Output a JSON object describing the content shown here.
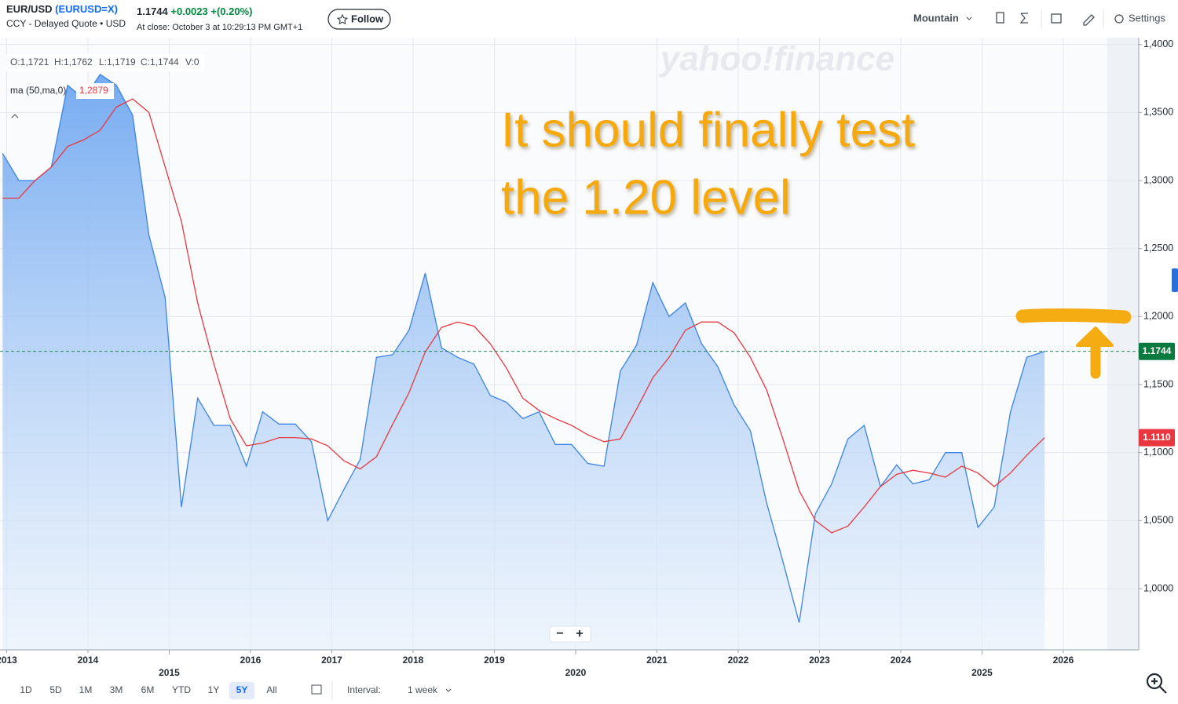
{
  "header": {
    "symbol": "EUR/USD",
    "ticker": "(EURUSD=X)",
    "subtitle": "CCY - Delayed Quote • USD",
    "price": "1.1744",
    "change": "+0.0023",
    "change_pct": "+(0.20%)",
    "close_time": "At close: October 3 at 10:29:13 PM GMT+1",
    "follow": "Follow",
    "chart_style": "Mountain",
    "settings": "Settings"
  },
  "ohlc": [
    "O:1,1721",
    "H:1,1762",
    "L:1,1719",
    "C:1,1744",
    "V:0"
  ],
  "legend_value": "1,2879",
  "watermark": "yahoo!finance",
  "annotation": [
    "It should finally test",
    "the 1.20 level"
  ],
  "zoom": [
    "−",
    "+"
  ],
  "ranges": [
    "1D",
    "5D",
    "1M",
    "3M",
    "6M",
    "YTD",
    "1Y",
    "5Y",
    "All"
  ],
  "selected_range": "5Y",
  "interval_label": "Interval:",
  "interval": "1 week",
  "chart_data": {
    "type": "area",
    "x": [
      2012.95,
      2013.15,
      2013.35,
      2013.55,
      2013.75,
      2013.95,
      2014.15,
      2014.35,
      2014.55,
      2014.75,
      2014.95,
      2015.15,
      2015.35,
      2015.55,
      2015.75,
      2015.95,
      2016.15,
      2016.35,
      2016.55,
      2016.75,
      2016.95,
      2017.15,
      2017.35,
      2017.55,
      2017.75,
      2017.95,
      2018.15,
      2018.35,
      2018.55,
      2018.75,
      2018.95,
      2019.15,
      2019.35,
      2019.55,
      2019.75,
      2019.95,
      2020.15,
      2020.35,
      2020.55,
      2020.75,
      2020.95,
      2021.15,
      2021.35,
      2021.55,
      2021.75,
      2021.95,
      2022.15,
      2022.35,
      2022.55,
      2022.75,
      2022.95,
      2023.15,
      2023.35,
      2023.55,
      2023.75,
      2023.95,
      2024.15,
      2024.35,
      2024.55,
      2024.75,
      2024.95,
      2025.15,
      2025.35,
      2025.55,
      2025.77
    ],
    "series": [
      {
        "color": "#3b82e6",
        "values": [
          1.32,
          1.3,
          1.3,
          1.31,
          1.37,
          1.36,
          1.378,
          1.37,
          1.348,
          1.26,
          1.214,
          1.06,
          1.14,
          1.12,
          1.12,
          1.09,
          1.13,
          1.121,
          1.121,
          1.108,
          1.05,
          1.073,
          1.095,
          1.17,
          1.172,
          1.19,
          1.232,
          1.177,
          1.17,
          1.165,
          1.142,
          1.137,
          1.125,
          1.13,
          1.106,
          1.106,
          1.092,
          1.09,
          1.16,
          1.179,
          1.225,
          1.2,
          1.21,
          1.18,
          1.163,
          1.135,
          1.116,
          1.063,
          1.02,
          0.975,
          1.055,
          1.077,
          1.11,
          1.12,
          1.075,
          1.091,
          1.077,
          1.08,
          1.1,
          1.1,
          1.045,
          1.06,
          1.13,
          1.17,
          1.1744
        ]
      },
      {
        "name": "ma (50,ma,0)",
        "type": "line",
        "color": "#e8373f",
        "values": [
          1.287,
          1.287,
          1.3,
          1.31,
          1.325,
          1.33,
          1.337,
          1.354,
          1.36,
          1.35,
          1.31,
          1.27,
          1.21,
          1.165,
          1.125,
          1.105,
          1.107,
          1.111,
          1.111,
          1.11,
          1.105,
          1.094,
          1.088,
          1.097,
          1.121,
          1.144,
          1.174,
          1.192,
          1.196,
          1.193,
          1.18,
          1.162,
          1.14,
          1.131,
          1.125,
          1.12,
          1.113,
          1.108,
          1.11,
          1.132,
          1.155,
          1.17,
          1.19,
          1.196,
          1.196,
          1.188,
          1.17,
          1.146,
          1.11,
          1.072,
          1.05,
          1.041,
          1.046,
          1.06,
          1.075,
          1.084,
          1.087,
          1.085,
          1.082,
          1.09,
          1.085,
          1.075,
          1.085,
          1.098,
          1.111
        ]
      }
    ],
    "price_marker": 1.1744,
    "ma_marker": {
      "value": 1.111,
      "label": "1.1110"
    },
    "xlim": [
      2012.918,
      2026.928
    ],
    "xticks": [
      2013,
      2014,
      2015,
      2016,
      2017,
      2018,
      2019,
      2020,
      2021,
      2022,
      2023,
      2024,
      2025,
      2026
    ],
    "ylim": [
      0.955,
      1.405
    ],
    "yticks": [
      {
        "value": 1.0,
        "label": "1,0000"
      },
      {
        "value": 1.05,
        "label": "1,0500"
      },
      {
        "value": 1.1,
        "label": "1,1000"
      },
      {
        "value": 1.15,
        "label": "1,1500"
      },
      {
        "value": 1.2,
        "label": "1,2000"
      },
      {
        "value": 1.25,
        "label": "1,2500"
      },
      {
        "value": 1.3,
        "label": "1,3000"
      },
      {
        "value": 1.35,
        "label": "1,3500"
      },
      {
        "value": 1.4,
        "label": "1,4000"
      }
    ],
    "grid": true
  }
}
